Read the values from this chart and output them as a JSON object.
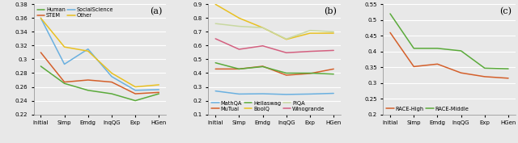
{
  "x_labels": [
    "Initial",
    "Simp",
    "Emdg",
    "InqQG",
    "Exp",
    "HGen"
  ],
  "bg_color": "#e8e8e8",
  "panel_a": {
    "title": "(a)",
    "ylim": [
      0.22,
      0.38
    ],
    "yticks": [
      0.22,
      0.24,
      0.26,
      0.28,
      0.3,
      0.32,
      0.34,
      0.36,
      0.38
    ],
    "legend_order": [
      "Human",
      "STEM",
      "SocialScience",
      "Other"
    ],
    "series": {
      "Human": {
        "color": "#5aaa3a",
        "data": [
          0.29,
          0.265,
          0.255,
          0.25,
          0.24,
          0.25
        ]
      },
      "STEM": {
        "color": "#d45f2a",
        "data": [
          0.31,
          0.267,
          0.27,
          0.267,
          0.25,
          0.252
        ]
      },
      "SocialScience": {
        "color": "#6ab0e0",
        "data": [
          0.36,
          0.293,
          0.315,
          0.275,
          0.255,
          0.256
        ]
      },
      "Other": {
        "color": "#e8c020",
        "data": [
          0.36,
          0.318,
          0.312,
          0.28,
          0.26,
          0.263
        ]
      }
    }
  },
  "panel_b": {
    "title": "(b)",
    "ylim": [
      0.1,
      0.9
    ],
    "yticks": [
      0.1,
      0.2,
      0.3,
      0.4,
      0.5,
      0.6,
      0.7,
      0.8,
      0.9
    ],
    "legend_order": [
      "MathQA",
      "MuTual",
      "Hellaswag",
      "BoolQ",
      "PIQA",
      "Winogrande"
    ],
    "series": {
      "MathQA": {
        "color": "#6ab0e0",
        "data": [
          0.27,
          0.248,
          0.25,
          0.245,
          0.248,
          0.253
        ]
      },
      "MuTual": {
        "color": "#d45f2a",
        "data": [
          0.43,
          0.43,
          0.45,
          0.385,
          0.397,
          0.43
        ]
      },
      "Hellaswag": {
        "color": "#5aaa3a",
        "data": [
          0.475,
          0.43,
          0.447,
          0.4,
          0.4,
          0.393
        ]
      },
      "BoolQ": {
        "color": "#e8c020",
        "data": [
          0.9,
          0.8,
          0.73,
          0.645,
          0.69,
          0.69
        ]
      },
      "PIQA": {
        "color": "#c8d8a0",
        "data": [
          0.76,
          0.74,
          0.73,
          0.648,
          0.71,
          0.7
        ]
      },
      "Winogrande": {
        "color": "#d46080",
        "data": [
          0.65,
          0.573,
          0.598,
          0.548,
          0.558,
          0.565
        ]
      }
    }
  },
  "panel_c": {
    "title": "(c)",
    "ylim": [
      0.2,
      0.55
    ],
    "yticks": [
      0.2,
      0.25,
      0.3,
      0.35,
      0.4,
      0.45,
      0.5,
      0.55
    ],
    "legend_order": [
      "RACE-High",
      "RACE-Middle"
    ],
    "series": {
      "RACE-High": {
        "color": "#d45f2a",
        "data": [
          0.46,
          0.352,
          0.36,
          0.332,
          0.32,
          0.315
        ]
      },
      "RACE-Middle": {
        "color": "#5aaa3a",
        "data": [
          0.52,
          0.41,
          0.41,
          0.402,
          0.347,
          0.345
        ]
      }
    }
  }
}
